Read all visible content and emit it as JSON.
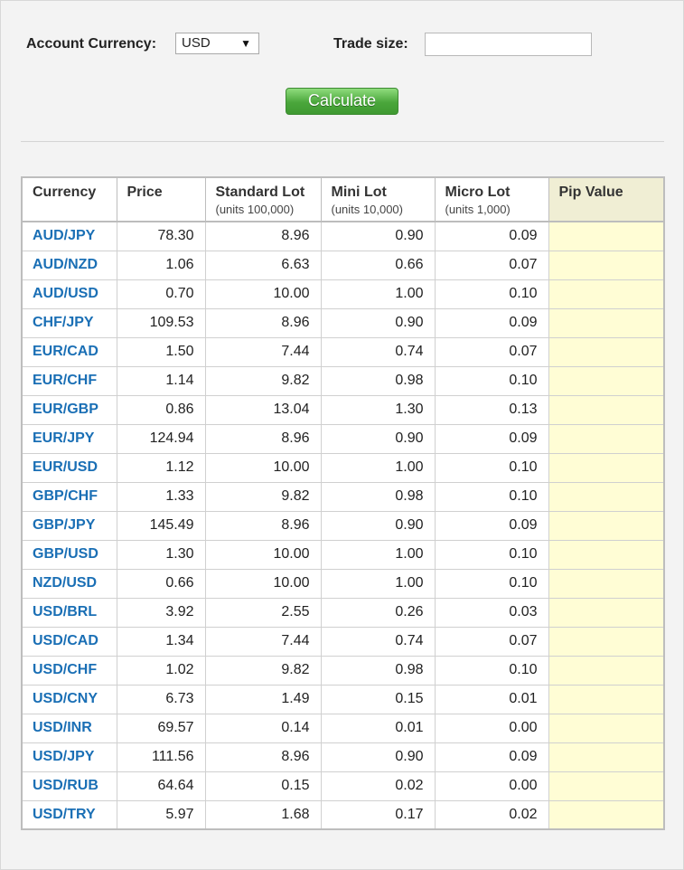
{
  "form": {
    "account_currency_label": "Account Currency:",
    "account_currency_value": "USD",
    "select_arrow": "▼",
    "trade_size_label": "Trade size:",
    "trade_size_value": "",
    "calculate_label": "Calculate"
  },
  "table": {
    "headers": [
      {
        "label": "Currency",
        "sub": ""
      },
      {
        "label": "Price",
        "sub": ""
      },
      {
        "label": "Standard Lot",
        "sub": "(units 100,000)"
      },
      {
        "label": "Mini Lot",
        "sub": "(units 10,000)"
      },
      {
        "label": "Micro Lot",
        "sub": "(units 1,000)"
      },
      {
        "label": "Pip Value",
        "sub": ""
      }
    ],
    "rows": [
      {
        "pair": "AUD/JPY",
        "price": "78.30",
        "standard": "8.96",
        "mini": "0.90",
        "micro": "0.09",
        "pip": ""
      },
      {
        "pair": "AUD/NZD",
        "price": "1.06",
        "standard": "6.63",
        "mini": "0.66",
        "micro": "0.07",
        "pip": ""
      },
      {
        "pair": "AUD/USD",
        "price": "0.70",
        "standard": "10.00",
        "mini": "1.00",
        "micro": "0.10",
        "pip": ""
      },
      {
        "pair": "CHF/JPY",
        "price": "109.53",
        "standard": "8.96",
        "mini": "0.90",
        "micro": "0.09",
        "pip": ""
      },
      {
        "pair": "EUR/CAD",
        "price": "1.50",
        "standard": "7.44",
        "mini": "0.74",
        "micro": "0.07",
        "pip": ""
      },
      {
        "pair": "EUR/CHF",
        "price": "1.14",
        "standard": "9.82",
        "mini": "0.98",
        "micro": "0.10",
        "pip": ""
      },
      {
        "pair": "EUR/GBP",
        "price": "0.86",
        "standard": "13.04",
        "mini": "1.30",
        "micro": "0.13",
        "pip": ""
      },
      {
        "pair": "EUR/JPY",
        "price": "124.94",
        "standard": "8.96",
        "mini": "0.90",
        "micro": "0.09",
        "pip": ""
      },
      {
        "pair": "EUR/USD",
        "price": "1.12",
        "standard": "10.00",
        "mini": "1.00",
        "micro": "0.10",
        "pip": ""
      },
      {
        "pair": "GBP/CHF",
        "price": "1.33",
        "standard": "9.82",
        "mini": "0.98",
        "micro": "0.10",
        "pip": ""
      },
      {
        "pair": "GBP/JPY",
        "price": "145.49",
        "standard": "8.96",
        "mini": "0.90",
        "micro": "0.09",
        "pip": ""
      },
      {
        "pair": "GBP/USD",
        "price": "1.30",
        "standard": "10.00",
        "mini": "1.00",
        "micro": "0.10",
        "pip": ""
      },
      {
        "pair": "NZD/USD",
        "price": "0.66",
        "standard": "10.00",
        "mini": "1.00",
        "micro": "0.10",
        "pip": ""
      },
      {
        "pair": "USD/BRL",
        "price": "3.92",
        "standard": "2.55",
        "mini": "0.26",
        "micro": "0.03",
        "pip": ""
      },
      {
        "pair": "USD/CAD",
        "price": "1.34",
        "standard": "7.44",
        "mini": "0.74",
        "micro": "0.07",
        "pip": ""
      },
      {
        "pair": "USD/CHF",
        "price": "1.02",
        "standard": "9.82",
        "mini": "0.98",
        "micro": "0.10",
        "pip": ""
      },
      {
        "pair": "USD/CNY",
        "price": "6.73",
        "standard": "1.49",
        "mini": "0.15",
        "micro": "0.01",
        "pip": ""
      },
      {
        "pair": "USD/INR",
        "price": "69.57",
        "standard": "0.14",
        "mini": "0.01",
        "micro": "0.00",
        "pip": ""
      },
      {
        "pair": "USD/JPY",
        "price": "111.56",
        "standard": "8.96",
        "mini": "0.90",
        "micro": "0.09",
        "pip": ""
      },
      {
        "pair": "USD/RUB",
        "price": "64.64",
        "standard": "0.15",
        "mini": "0.02",
        "micro": "0.00",
        "pip": ""
      },
      {
        "pair": "USD/TRY",
        "price": "5.97",
        "standard": "1.68",
        "mini": "0.17",
        "micro": "0.02",
        "pip": ""
      }
    ]
  }
}
